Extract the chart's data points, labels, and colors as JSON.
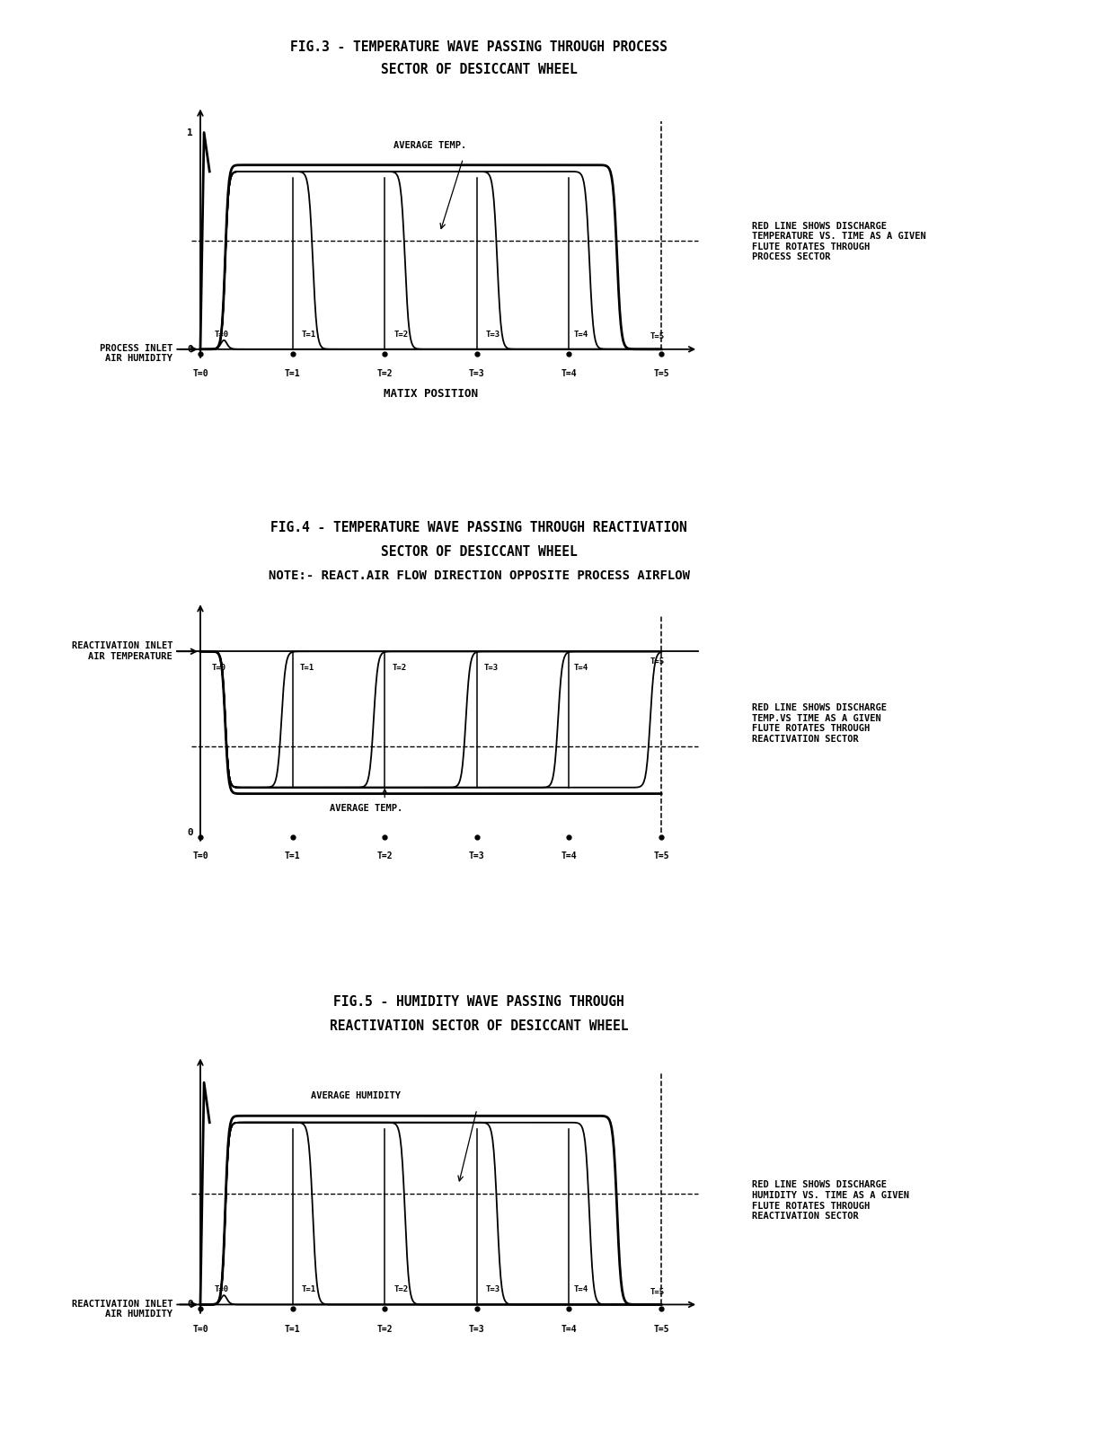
{
  "fig3_title_line1": "FIG.3 - TEMPERATURE WAVE PASSING THROUGH PROCESS",
  "fig3_title_line2": "SECTOR OF DESICCANT WHEEL",
  "fig4_title_line1": "FIG.4 - TEMPERATURE WAVE PASSING THROUGH REACTIVATION",
  "fig4_title_line2": "SECTOR OF DESICCANT WHEEL",
  "fig4_title_line3": "NOTE:- REACT.AIR FLOW DIRECTION OPPOSITE PROCESS AIRFLOW",
  "fig5_title_line1": "FIG.5 - HUMIDITY WAVE PASSING THROUGH",
  "fig5_title_line2": "REACTIVATION SECTOR OF DESICCANT WHEEL",
  "fig3_left_label": "PROCESS INLET\nAIR HUMIDITY",
  "fig4_left_label": "REACTIVATION INLET\nAIR TEMPERATURE",
  "fig5_left_label": "REACTIVATION INLET\nAIR HUMIDITY",
  "fig3_xlabel": "MATIX POSITION",
  "fig3_avg_label": "AVERAGE TEMP.",
  "fig4_avg_label": "AVERAGE TEMP.",
  "fig5_avg_label": "AVERAGE HUMIDITY",
  "fig3_note": "RED LINE SHOWS DISCHARGE\nTEMPERATURE VS. TIME AS A GIVEN\nFLUTE ROTATES THROUGH\nPROCESS SECTOR",
  "fig4_note": "RED LINE SHOWS DISCHARGE\nTEMP.VS TIME AS A GIVEN\nFLUTE ROTATES THROUGH\nREACTIVATION SECTOR",
  "fig5_note": "RED LINE SHOWS DISCHARGE\nHUMIDITY VS. TIME AS A GIVEN\nFLUTE ROTATES THROUGH\nREACTIVATION SECTOR",
  "time_labels": [
    "T=0",
    "T=1",
    "T=2",
    "T=3",
    "T=4",
    "T=5"
  ],
  "bg_color": "#ffffff"
}
